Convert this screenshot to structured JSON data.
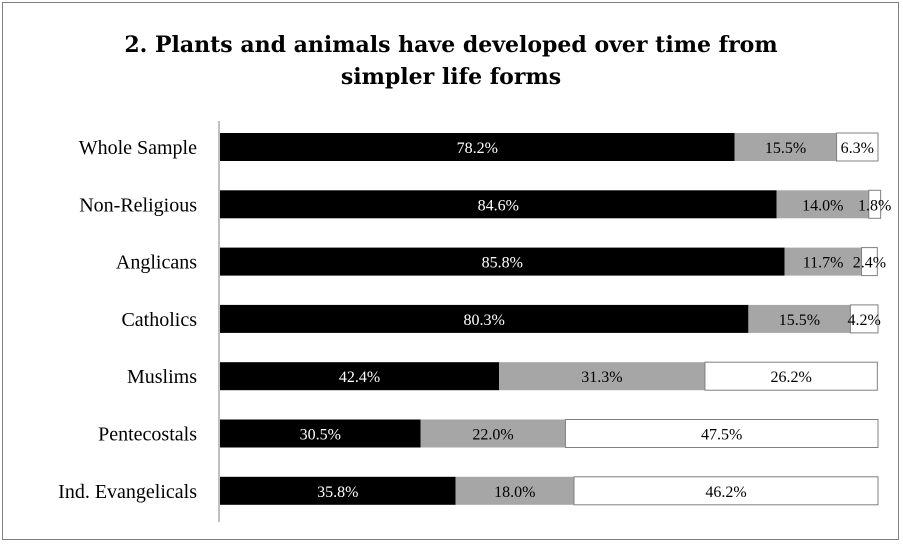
{
  "chart_data": {
    "type": "bar",
    "orientation": "horizontal",
    "stacked": true,
    "title": "2. Plants and animals have developed over time from simpler life forms",
    "title_lines": [
      "2. Plants and animals have developed over time from",
      "simpler life forms"
    ],
    "categories": [
      "Whole Sample",
      "Non-Religious",
      "Anglicans",
      "Catholics",
      "Muslims",
      "Pentecostals",
      "Ind. Evangelicals"
    ],
    "series": [
      {
        "values": [
          78.2,
          84.6,
          85.8,
          80.3,
          42.4,
          30.5,
          35.8
        ],
        "labels": [
          "78.2%",
          "84.6%",
          "85.8%",
          "80.3%",
          "42.4%",
          "30.5%",
          "35.8%"
        ],
        "color": "#000000",
        "label_color": "#ffffff"
      },
      {
        "values": [
          15.5,
          14.0,
          11.7,
          15.5,
          31.3,
          22.0,
          18.0
        ],
        "labels": [
          "15.5%",
          "14.0%",
          "11.7%",
          "15.5%",
          "31.3%",
          "22.0%",
          "18.0%"
        ],
        "color": "#a6a6a6",
        "label_color": "#000000"
      },
      {
        "values": [
          6.3,
          1.8,
          2.4,
          4.2,
          26.2,
          47.5,
          46.2
        ],
        "labels": [
          "6.3%",
          "1.8%",
          "2.4%",
          "4.2%",
          "26.2%",
          "47.5%",
          "46.2%"
        ],
        "color": "#ffffff",
        "label_color": "#000000"
      }
    ],
    "xlim": [
      0,
      100
    ],
    "grid": false,
    "legend": "none"
  }
}
